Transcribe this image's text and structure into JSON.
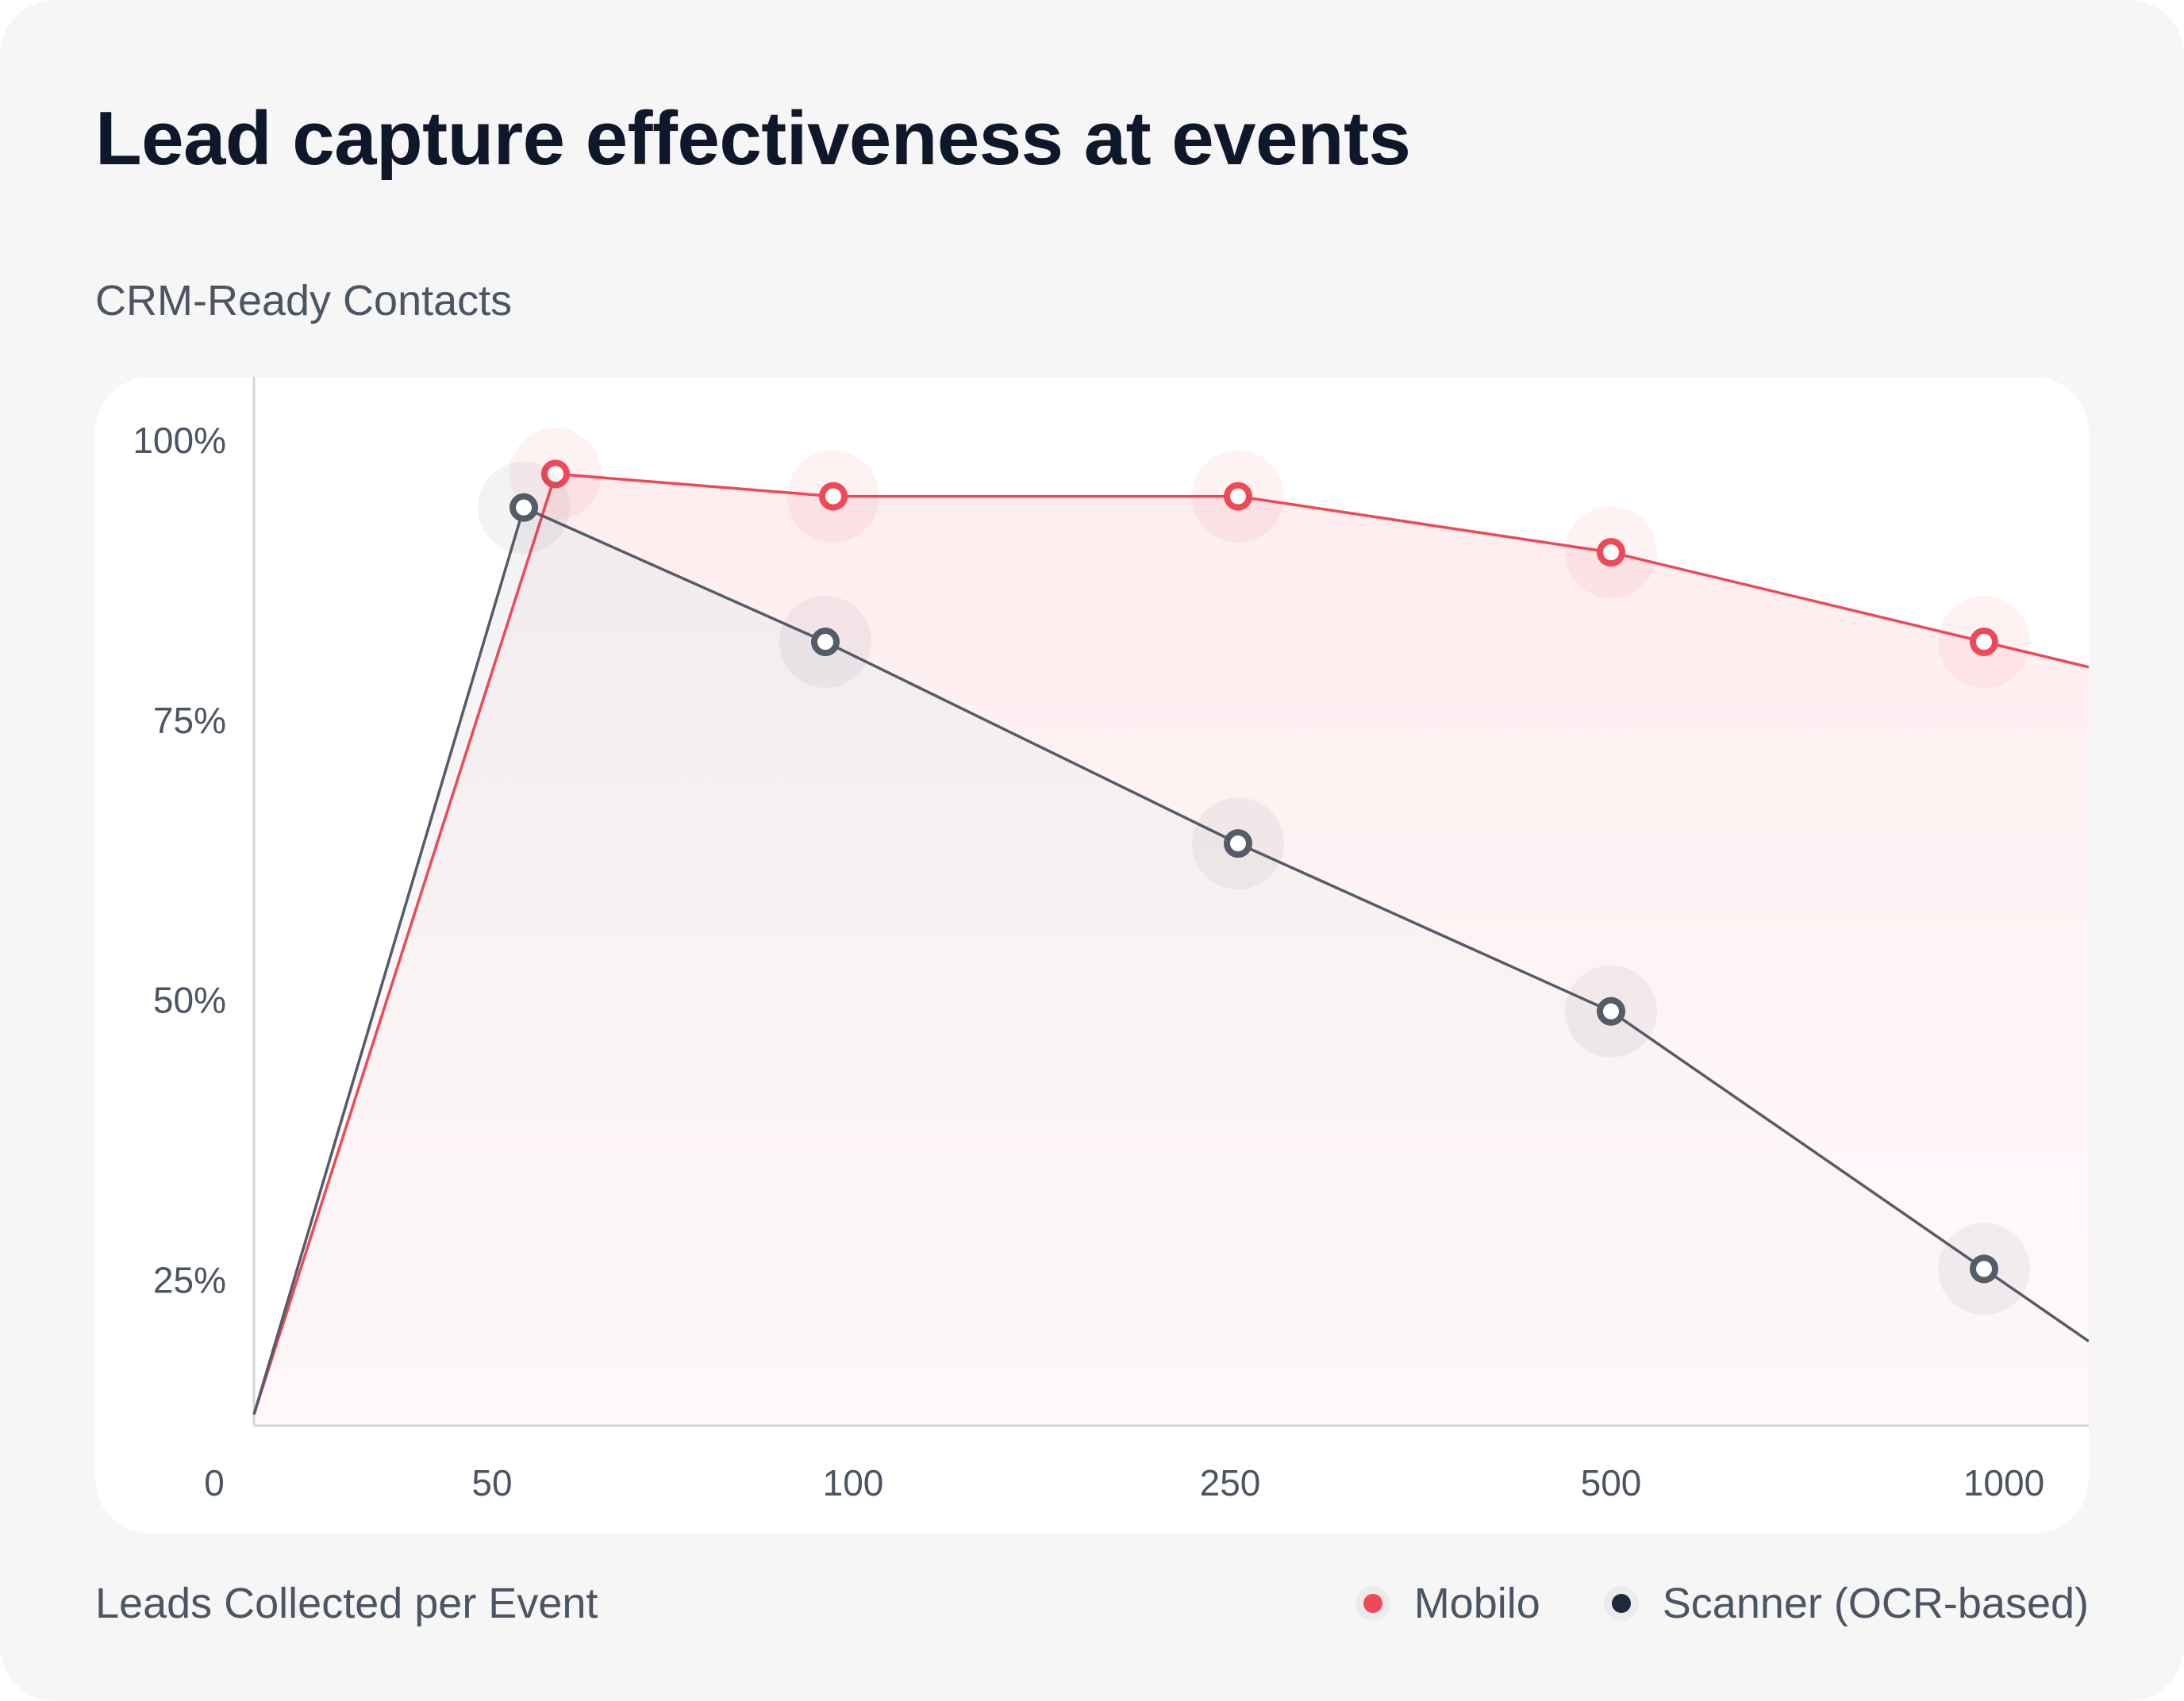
{
  "title": "Lead capture effectiveness at events",
  "chart_data": {
    "type": "line",
    "title": "Lead capture effectiveness at events",
    "ylabel": "CRM-Ready Contacts",
    "xlabel": "Leads Collected per Event",
    "x_ticks": [
      "0",
      "50",
      "100",
      "250",
      "500",
      "1000"
    ],
    "y_ticks": [
      "100%",
      "75%",
      "50%",
      "25%"
    ],
    "ylim": [
      12,
      104
    ],
    "categories": [
      "0",
      "50",
      "100",
      "250",
      "500",
      "1000"
    ],
    "series": [
      {
        "name": "Mobilo",
        "color": "#ef4856",
        "values": [
          13,
          97,
          95,
          95,
          90,
          82
        ]
      },
      {
        "name": "Scanner (OCR-based)",
        "color": "#545b69",
        "values": [
          13,
          94,
          82,
          64,
          49,
          26
        ]
      }
    ],
    "legend": "bottom-right",
    "grid": false
  }
}
